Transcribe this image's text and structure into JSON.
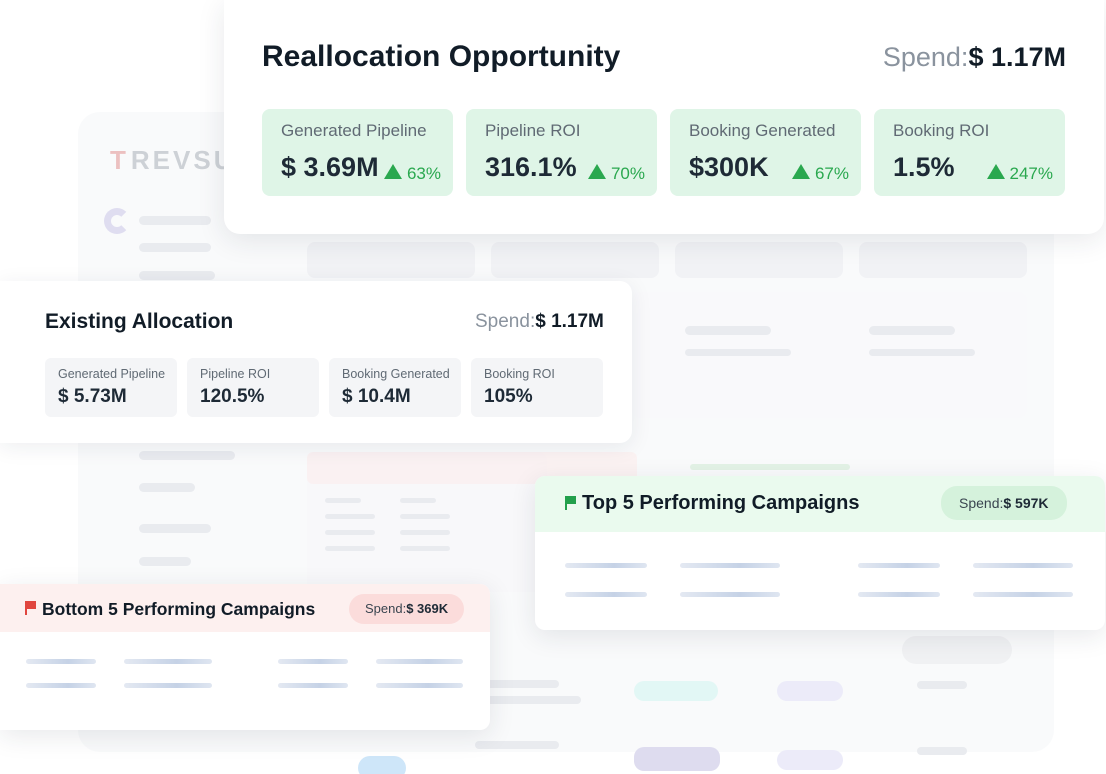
{
  "background": {
    "logo_text": "REVSURE",
    "logo_mark": "T"
  },
  "reallocation": {
    "title": "Reallocation Opportunity",
    "spend_label": "Spend:",
    "spend_value": "$ 1.17M",
    "metrics": [
      {
        "label": "Generated Pipeline",
        "value": "$ 3.69M",
        "change": "63%"
      },
      {
        "label": "Pipeline ROI",
        "value": "316.1%",
        "change": "70%"
      },
      {
        "label": "Booking Generated",
        "value": "$300K",
        "change": "67%"
      },
      {
        "label": "Booking ROI",
        "value": "1.5%",
        "change": "247%"
      }
    ]
  },
  "existing": {
    "title": "Existing Allocation",
    "spend_label": "Spend:",
    "spend_value": "$ 1.17M",
    "metrics": [
      {
        "label": "Generated Pipeline",
        "value": "$ 5.73M"
      },
      {
        "label": "Pipeline ROI",
        "value": "120.5%"
      },
      {
        "label": "Booking Generated",
        "value": "$ 10.4M"
      },
      {
        "label": "Booking ROI",
        "value": "105%"
      }
    ]
  },
  "top_campaigns": {
    "title": "Top 5 Performing Campaigns",
    "spend_label": "Spend:",
    "spend_value": "$ 597K",
    "flag_icon": "green-flag-icon",
    "accent": "#22a04b"
  },
  "bottom_campaigns": {
    "title": "Bottom 5 Performing Campaigns",
    "spend_label": "Spend:",
    "spend_value": "$ 369K",
    "flag_icon": "red-flag-icon",
    "accent": "#e0463f"
  },
  "colors": {
    "positive": "#2aa84f",
    "metric_bg": "#dff5e7",
    "text_dark": "#111c27"
  }
}
